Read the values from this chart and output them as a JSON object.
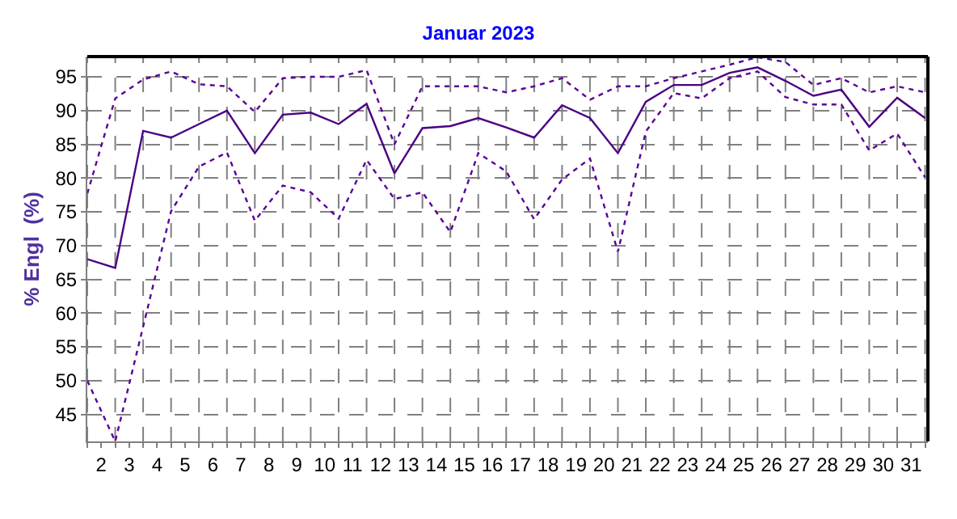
{
  "chart_data": {
    "type": "line",
    "title": "Januar 2023",
    "ylabel": "% Engl  (%)",
    "x": [
      1.5,
      2.5,
      3.5,
      4.5,
      5.5,
      6.5,
      7.5,
      8.5,
      9.5,
      10.5,
      11.5,
      12.5,
      13.5,
      14.5,
      15.5,
      16.5,
      17.5,
      18.5,
      19.5,
      20.5,
      21.5,
      22.5,
      23.5,
      24.5,
      25.5,
      26.5,
      27.5,
      28.5,
      29.5,
      30.5,
      31.5
    ],
    "xlim": [
      1.5,
      31.6
    ],
    "xticks": [
      2,
      3,
      4,
      5,
      6,
      7,
      8,
      9,
      10,
      11,
      12,
      13,
      14,
      15,
      16,
      17,
      18,
      19,
      20,
      21,
      22,
      23,
      24,
      25,
      26,
      27,
      28,
      29,
      30,
      31,
      {
        "value": 1.5,
        "label": null
      },
      {
        "value": 2.5,
        "label": null
      },
      {
        "value": 3.5,
        "label": null
      },
      {
        "value": 4.5,
        "label": null
      },
      {
        "value": 5.5,
        "label": null
      },
      {
        "value": 6.5,
        "label": null
      },
      {
        "value": 7.5,
        "label": null
      },
      {
        "value": 8.5,
        "label": null
      },
      {
        "value": 9.5,
        "label": null
      },
      {
        "value": 10.5,
        "label": null
      },
      {
        "value": 11.5,
        "label": null
      },
      {
        "value": 12.5,
        "label": null
      },
      {
        "value": 13.5,
        "label": null
      },
      {
        "value": 14.5,
        "label": null
      },
      {
        "value": 15.5,
        "label": null
      },
      {
        "value": 16.5,
        "label": null
      },
      {
        "value": 17.5,
        "label": null
      },
      {
        "value": 18.5,
        "label": null
      },
      {
        "value": 19.5,
        "label": null
      },
      {
        "value": 20.5,
        "label": null
      },
      {
        "value": 21.5,
        "label": null
      },
      {
        "value": 22.5,
        "label": null
      },
      {
        "value": 23.5,
        "label": null
      },
      {
        "value": 24.5,
        "label": null
      },
      {
        "value": 25.5,
        "label": null
      },
      {
        "value": 26.5,
        "label": null
      },
      {
        "value": 27.5,
        "label": null
      },
      {
        "value": 28.5,
        "label": null
      },
      {
        "value": 29.5,
        "label": null
      },
      {
        "value": 30.5,
        "label": null
      },
      {
        "value": 31.5,
        "label": null
      }
    ],
    "ylim": [
      41,
      98
    ],
    "yticks": [
      45,
      50,
      55,
      60,
      65,
      70,
      75,
      80,
      85,
      90,
      95
    ],
    "grid": true,
    "marker": "none",
    "series": [
      {
        "color": "#4b0082",
        "line_style": "solid",
        "values": [
          68,
          66.7,
          87,
          86,
          88,
          90,
          83.7,
          89.4,
          89.7,
          88,
          91,
          80.7,
          87.4,
          87.7,
          88.9,
          87.5,
          86,
          90.8,
          88.9,
          83.7,
          91.3,
          93.8,
          93.8,
          95.6,
          96.4,
          94.4,
          92.2,
          93.1,
          87.6,
          91.9,
          88.9
        ]
      },
      {
        "color": "#5a0096",
        "line_style": "dotted",
        "values": [
          77.7,
          91.8,
          94.6,
          95.8,
          93.9,
          93.6,
          89.8,
          94.8,
          95,
          95,
          96,
          85,
          93.6,
          93.6,
          93.6,
          92.7,
          93.6,
          94.8,
          91.6,
          93.6,
          93.6,
          94.8,
          95.8,
          96.8,
          97.9,
          97.2,
          93.8,
          94.8,
          92.7,
          93.6,
          92.7
        ]
      },
      {
        "color": "#5a0096",
        "line_style": "dotted",
        "values": [
          50,
          41,
          58,
          75.1,
          81.7,
          83.8,
          73.7,
          78.9,
          77.9,
          74,
          82.7,
          76.9,
          77.9,
          72,
          83.7,
          81,
          73.9,
          79.8,
          82.9,
          69.1,
          86.9,
          92.6,
          91.8,
          94.8,
          95.8,
          92,
          90.9,
          90.9,
          84.1,
          86.6,
          80.1
        ]
      }
    ]
  }
}
